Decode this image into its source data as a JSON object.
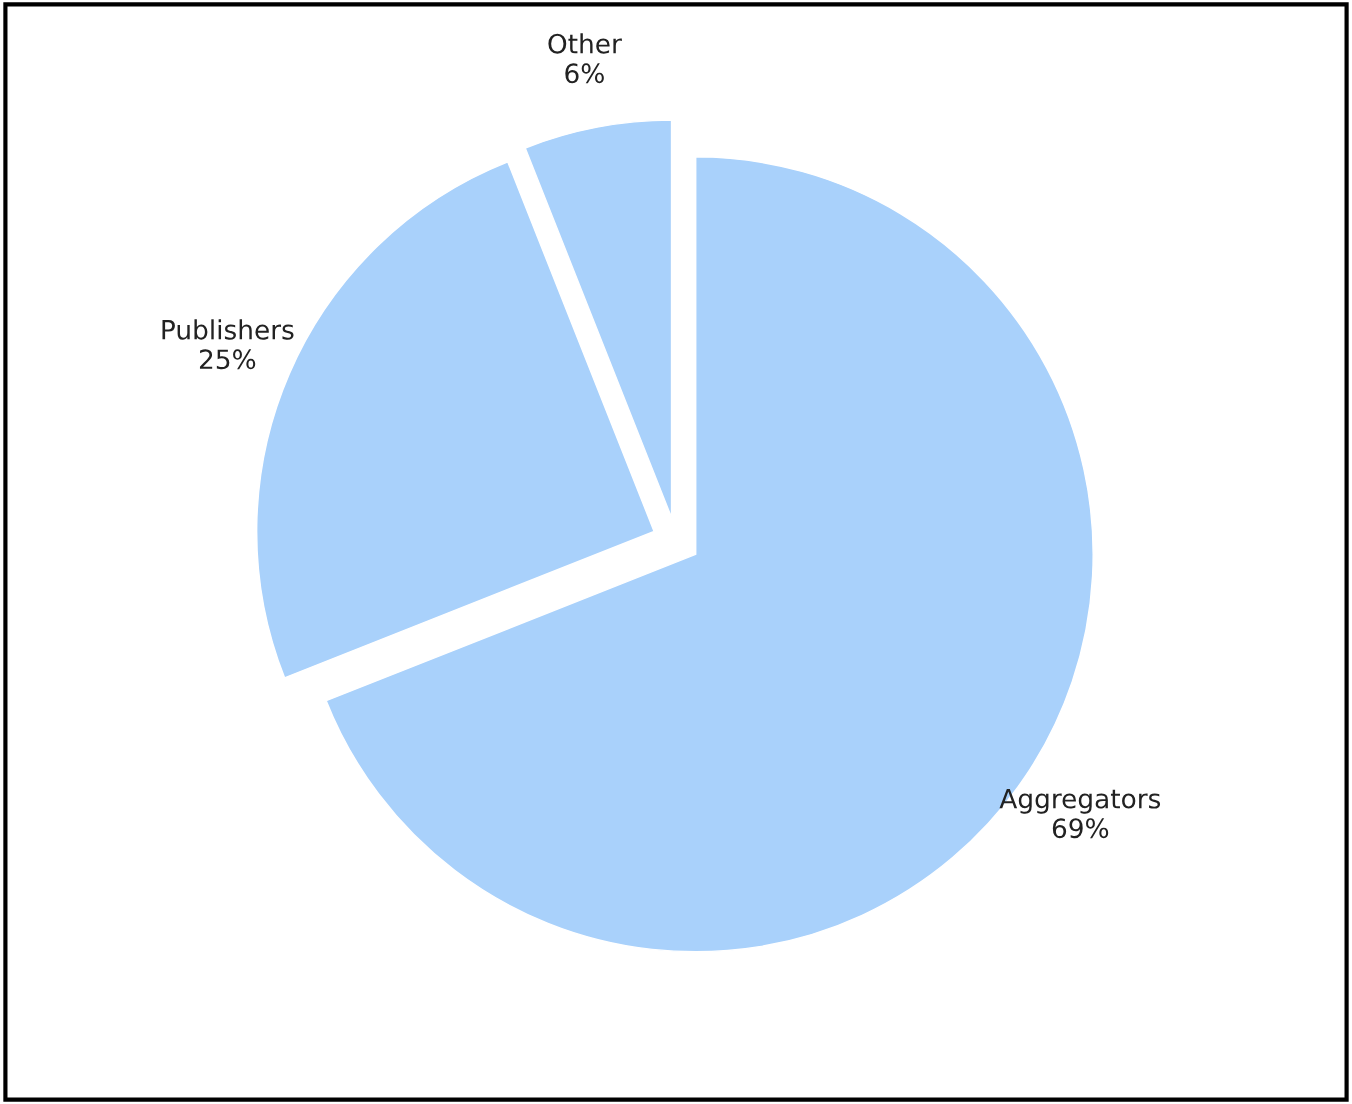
{
  "chart_data": {
    "type": "pie",
    "categories": [
      "Aggregators",
      "Publishers",
      "Other"
    ],
    "values": [
      69,
      25,
      6
    ],
    "value_labels": [
      "69%",
      "25%",
      "6%"
    ],
    "colors": [
      "#a9d1fb",
      "#a9d1fb",
      "#a9d1fb"
    ]
  }
}
